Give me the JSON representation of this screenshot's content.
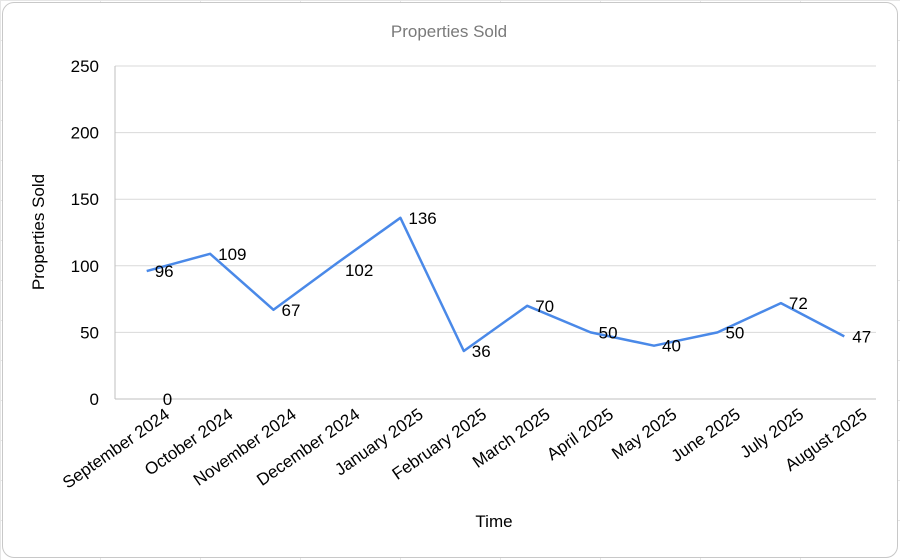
{
  "chart_data": {
    "type": "line",
    "title": "Properties Sold",
    "xlabel": "Time",
    "ylabel": "Properties Sold",
    "categories": [
      "September 2024",
      "October 2024",
      "November 2024",
      "December 2024",
      "January 2025",
      "February 2025",
      "March 2025",
      "April 2025",
      "May 2025",
      "June 2025",
      "July 2025",
      "August 2025"
    ],
    "series": [
      {
        "values": [
          96,
          109,
          67,
          102,
          136,
          36,
          70,
          50,
          40,
          50,
          72,
          47
        ]
      }
    ],
    "data_labels": [
      "96",
      "109",
      "67",
      "102",
      "136",
      "36",
      "70",
      "50",
      "40",
      "50",
      "72",
      "47"
    ],
    "extra_label": "0",
    "ylim": [
      0,
      250
    ],
    "yticks": [
      0,
      50,
      100,
      150,
      200,
      250
    ],
    "grid": "horizontal",
    "line_color": "#4a89e8",
    "grid_color": "#d9d9d9"
  }
}
